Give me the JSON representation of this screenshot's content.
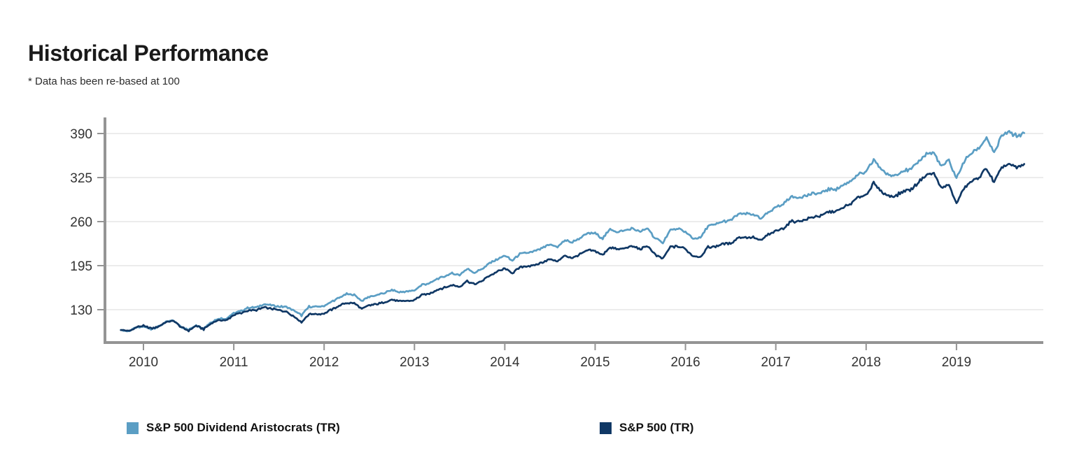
{
  "title": "Historical Performance",
  "subtitle": "* Data has been re-based at 100",
  "colors": {
    "aristocrats": "#5B9EC4",
    "sp500": "#103865",
    "axis": "#949494",
    "grid": "#dadada",
    "tick_label": "#333333",
    "title_text": "#1a1a1a"
  },
  "chart_data": {
    "type": "line",
    "title": "Historical Performance",
    "note": "* Data has been re-based at 100",
    "xlabel": "",
    "ylabel": "",
    "grid": "horizontal",
    "legend_position": "bottom",
    "x_start_year": 2009.75,
    "x_step_months": 1,
    "x_ticks": [
      2010,
      2011,
      2012,
      2013,
      2014,
      2015,
      2016,
      2017,
      2018,
      2019
    ],
    "y_ticks": [
      130,
      195,
      260,
      325,
      390
    ],
    "ylim": [
      83,
      412
    ],
    "xlim": [
      2009.7,
      2019.95
    ],
    "series": [
      {
        "name": "S&P 500 Dividend Aristocrats (TR)",
        "color_key": "aristocrats",
        "values": [
          100.0,
          97.9,
          103.3,
          104.9,
          101.6,
          105.1,
          111.8,
          113.9,
          105.2,
          100.0,
          107.3,
          102.6,
          112.1,
          116.7,
          117.0,
          125.1,
          128.4,
          133.1,
          133.5,
          137.9,
          136.5,
          134.7,
          133.9,
          128.9,
          121.5,
          134.7,
          134.2,
          135.4,
          141.7,
          147.9,
          153.0,
          152.2,
          143.2,
          149.2,
          151.4,
          154.8,
          158.9,
          156.0,
          156.8,
          158.3,
          166.7,
          169.0,
          175.5,
          179.2,
          183.5,
          181.2,
          190.3,
          184.5,
          190.2,
          198.8,
          204.6,
          209.6,
          202.6,
          211.9,
          213.9,
          215.9,
          220.9,
          225.8,
          223.1,
          232.5,
          229.7,
          235.8,
          242.7,
          242.6,
          235.3,
          248.5,
          244.5,
          247.0,
          249.9,
          244.9,
          250.0,
          234.7,
          228.9,
          248.3,
          248.9,
          244.9,
          234.9,
          236.4,
          253.4,
          255.3,
          260.5,
          262.0,
          271.4,
          271.3,
          270.9,
          263.8,
          274.4,
          281.1,
          285.9,
          296.0,
          295.7,
          298.0,
          301.0,
          302.0,
          307.9,
          308.0,
          314.0,
          320.9,
          329.9,
          333.1,
          351.5,
          337.7,
          328.3,
          328.9,
          335.3,
          336.9,
          349.1,
          359.6,
          361.1,
          341.2,
          350.2,
          323.6,
          349.1,
          361.3,
          369.4,
          383.6,
          360.9,
          387.1,
          391.1,
          386.5,
          390.3
        ]
      },
      {
        "name": "S&P 500 (TR)",
        "color_key": "sp500",
        "values": [
          100.0,
          98.2,
          104.0,
          106.0,
          102.3,
          105.4,
          111.8,
          113.6,
          104.5,
          99.0,
          106.0,
          101.1,
          110.2,
          114.4,
          114.4,
          122.0,
          125.0,
          129.2,
          129.3,
          133.2,
          131.6,
          129.5,
          126.9,
          119.9,
          111.5,
          123.7,
          123.3,
          124.6,
          130.2,
          135.7,
          140.2,
          139.4,
          130.9,
          136.3,
          138.2,
          141.2,
          144.9,
          142.2,
          142.9,
          144.2,
          151.7,
          153.6,
          159.4,
          162.6,
          166.2,
          164.0,
          172.4,
          167.3,
          172.6,
          180.6,
          186.0,
          190.7,
          184.2,
          192.5,
          194.1,
          195.7,
          200.1,
          204.3,
          201.5,
          209.5,
          206.6,
          211.7,
          217.3,
          216.8,
          210.4,
          222.3,
          218.8,
          221.1,
          223.8,
          219.4,
          224.1,
          210.5,
          205.3,
          222.7,
          223.2,
          219.6,
          208.8,
          208.3,
          222.5,
          223.4,
          227.3,
          227.8,
          236.4,
          236.5,
          236.6,
          232.4,
          240.7,
          245.5,
          250.4,
          260.1,
          260.5,
          263.3,
          266.8,
          268.5,
          274.2,
          274.8,
          280.6,
          287.3,
          295.9,
          299.3,
          316.7,
          304.8,
          297.1,
          298.5,
          305.4,
          307.4,
          319.1,
          329.3,
          331.3,
          308.8,
          314.9,
          286.4,
          309.5,
          319.2,
          325.5,
          338.9,
          317.1,
          339.6,
          344.6,
          339.0,
          345.4
        ]
      }
    ]
  }
}
